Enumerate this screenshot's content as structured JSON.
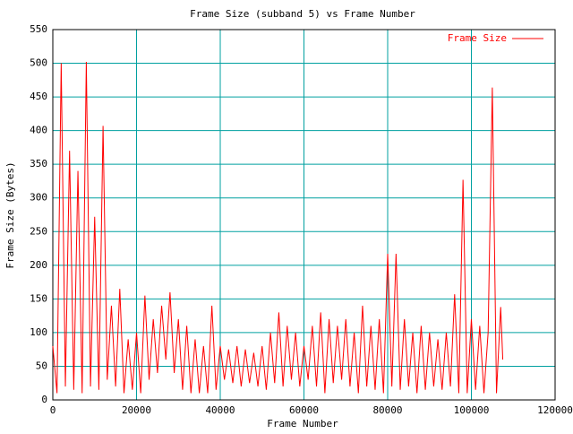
{
  "chart_data": {
    "type": "line",
    "title": "Frame Size (subband 5) vs Frame Number",
    "x_label": "Frame Number",
    "y_label": "Frame Size (Bytes)",
    "x": [
      0,
      1000,
      2000,
      3000,
      4000,
      5000,
      6000,
      7000,
      8000,
      9000,
      10000,
      11000,
      12000,
      13000,
      14000,
      15000,
      16000,
      17000,
      18000,
      19000,
      20000,
      21000,
      22000,
      23000,
      24000,
      25000,
      26000,
      27000,
      28000,
      29000,
      30000,
      31000,
      32000,
      33000,
      34000,
      35000,
      36000,
      37000,
      38000,
      39000,
      40000,
      41000,
      42000,
      43000,
      44000,
      45000,
      46000,
      47000,
      48000,
      49000,
      50000,
      51000,
      52000,
      53000,
      54000,
      55000,
      56000,
      57000,
      58000,
      59000,
      60000,
      61000,
      62000,
      63000,
      64000,
      65000,
      66000,
      67000,
      68000,
      69000,
      70000,
      71000,
      72000,
      73000,
      74000,
      75000,
      76000,
      77000,
      78000,
      79000,
      80000,
      81000,
      82000,
      83000,
      84000,
      85000,
      86000,
      87000,
      88000,
      89000,
      90000,
      91000,
      92000,
      93000,
      94000,
      95000,
      96000,
      97000,
      98000,
      99000,
      100000,
      101000,
      102000,
      103000,
      104000,
      105000,
      106000,
      107000,
      107500
    ],
    "series": [
      {
        "name": "Frame Size",
        "color": "#ff0000",
        "values": [
          80,
          10,
          500,
          20,
          370,
          15,
          340,
          10,
          502,
          20,
          272,
          15,
          407,
          30,
          140,
          20,
          165,
          10,
          90,
          15,
          100,
          10,
          155,
          30,
          120,
          40,
          140,
          60,
          160,
          40,
          120,
          15,
          110,
          10,
          90,
          10,
          80,
          10,
          140,
          15,
          80,
          30,
          75,
          25,
          80,
          20,
          75,
          25,
          70,
          20,
          80,
          15,
          100,
          25,
          130,
          20,
          110,
          30,
          100,
          20,
          80,
          30,
          110,
          20,
          130,
          10,
          120,
          25,
          110,
          30,
          120,
          20,
          100,
          10,
          140,
          20,
          110,
          15,
          120,
          10,
          217,
          20,
          217,
          15,
          120,
          20,
          100,
          10,
          110,
          15,
          100,
          20,
          90,
          15,
          100,
          20,
          157,
          10,
          327,
          10,
          120,
          15,
          110,
          10,
          100,
          464,
          10,
          138,
          60
        ]
      }
    ],
    "xlim": [
      0,
      120000
    ],
    "ylim": [
      0,
      550
    ],
    "xticks": [
      0,
      20000,
      40000,
      60000,
      80000,
      100000,
      120000
    ],
    "yticks": [
      0,
      50,
      100,
      150,
      200,
      250,
      300,
      350,
      400,
      450,
      500,
      550
    ],
    "grid": true,
    "legend": "top-right"
  }
}
